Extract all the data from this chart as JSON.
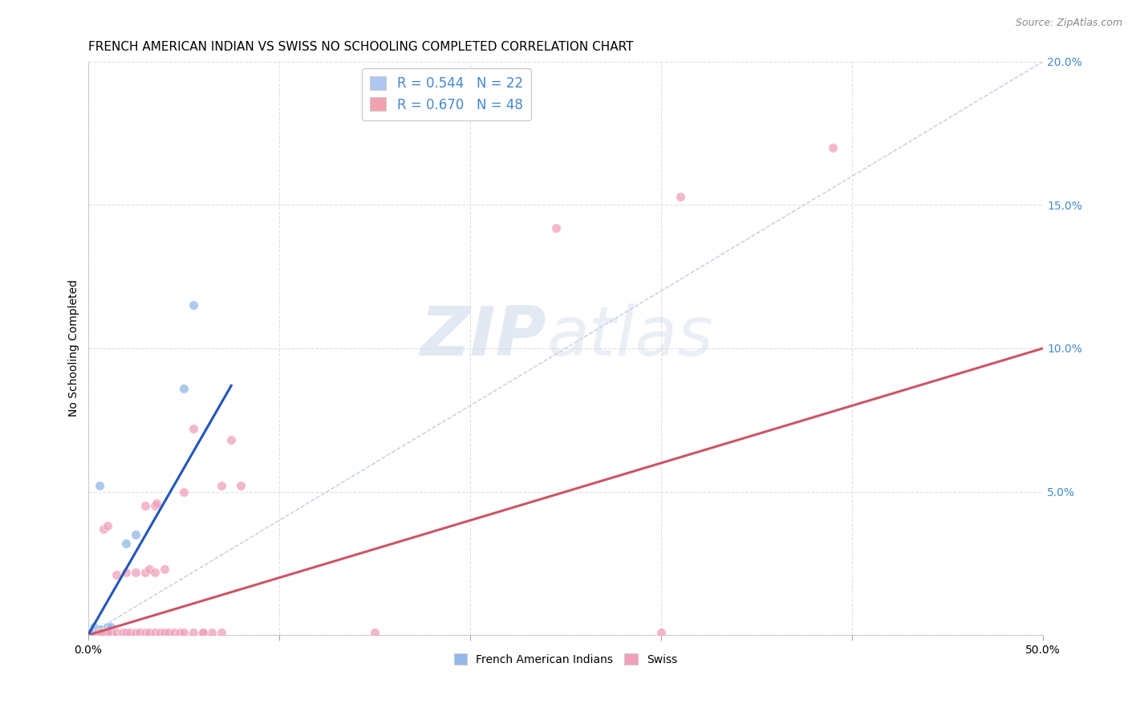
{
  "title": "FRENCH AMERICAN INDIAN VS SWISS NO SCHOOLING COMPLETED CORRELATION CHART",
  "source": "Source: ZipAtlas.com",
  "ylabel": "No Schooling Completed",
  "xlim": [
    0.0,
    0.5
  ],
  "ylim": [
    0.0,
    0.2
  ],
  "xticks": [
    0.0,
    0.1,
    0.2,
    0.3,
    0.4,
    0.5
  ],
  "yticks": [
    0.0,
    0.05,
    0.1,
    0.15,
    0.2
  ],
  "xticklabels": [
    "0.0%",
    "",
    "",
    "",
    "",
    "50.0%"
  ],
  "yticklabels": [
    "",
    "5.0%",
    "10.0%",
    "15.0%",
    "20.0%"
  ],
  "legend_entries": [
    {
      "label": "R = 0.544   N = 22",
      "color": "#aec6f0"
    },
    {
      "label": "R = 0.670   N = 48",
      "color": "#f5a0b0"
    }
  ],
  "blue_points": [
    [
      0.002,
      0.001
    ],
    [
      0.003,
      0.001
    ],
    [
      0.004,
      0.001
    ],
    [
      0.005,
      0.001
    ],
    [
      0.006,
      0.001
    ],
    [
      0.007,
      0.001
    ],
    [
      0.008,
      0.001
    ],
    [
      0.009,
      0.001
    ],
    [
      0.01,
      0.001
    ],
    [
      0.011,
      0.001
    ],
    [
      0.012,
      0.001
    ],
    [
      0.003,
      0.003
    ],
    [
      0.005,
      0.002
    ],
    [
      0.007,
      0.002
    ],
    [
      0.01,
      0.003
    ],
    [
      0.012,
      0.003
    ],
    [
      0.02,
      0.032
    ],
    [
      0.025,
      0.035
    ],
    [
      0.006,
      0.052
    ],
    [
      0.05,
      0.086
    ],
    [
      0.055,
      0.115
    ],
    [
      0.001,
      0.001
    ]
  ],
  "pink_points": [
    [
      0.005,
      0.001
    ],
    [
      0.008,
      0.001
    ],
    [
      0.01,
      0.001
    ],
    [
      0.012,
      0.001
    ],
    [
      0.015,
      0.001
    ],
    [
      0.018,
      0.001
    ],
    [
      0.02,
      0.001
    ],
    [
      0.022,
      0.001
    ],
    [
      0.025,
      0.001
    ],
    [
      0.027,
      0.001
    ],
    [
      0.03,
      0.001
    ],
    [
      0.032,
      0.001
    ],
    [
      0.035,
      0.001
    ],
    [
      0.038,
      0.001
    ],
    [
      0.04,
      0.001
    ],
    [
      0.042,
      0.001
    ],
    [
      0.045,
      0.001
    ],
    [
      0.048,
      0.001
    ],
    [
      0.05,
      0.001
    ],
    [
      0.055,
      0.001
    ],
    [
      0.06,
      0.001
    ],
    [
      0.065,
      0.001
    ],
    [
      0.07,
      0.001
    ],
    [
      0.015,
      0.021
    ],
    [
      0.02,
      0.022
    ],
    [
      0.025,
      0.022
    ],
    [
      0.03,
      0.022
    ],
    [
      0.032,
      0.023
    ],
    [
      0.035,
      0.022
    ],
    [
      0.04,
      0.023
    ],
    [
      0.008,
      0.037
    ],
    [
      0.01,
      0.038
    ],
    [
      0.03,
      0.045
    ],
    [
      0.035,
      0.045
    ],
    [
      0.036,
      0.046
    ],
    [
      0.05,
      0.05
    ],
    [
      0.07,
      0.052
    ],
    [
      0.08,
      0.052
    ],
    [
      0.055,
      0.072
    ],
    [
      0.075,
      0.068
    ],
    [
      0.15,
      0.001
    ],
    [
      0.3,
      0.001
    ],
    [
      0.245,
      0.142
    ],
    [
      0.31,
      0.153
    ],
    [
      0.39,
      0.17
    ],
    [
      0.01,
      0.001
    ],
    [
      0.007,
      0.001
    ],
    [
      0.06,
      0.001
    ]
  ],
  "blue_line": {
    "x": [
      0.0,
      0.075
    ],
    "y": [
      0.0,
      0.087
    ]
  },
  "pink_line": {
    "x": [
      0.0,
      0.5
    ],
    "y": [
      0.0,
      0.1
    ]
  },
  "diagonal_line": {
    "x": [
      0.0,
      0.5
    ],
    "y": [
      0.0,
      0.2
    ]
  },
  "watermark_zip": "ZIP",
  "watermark_atlas": "atlas",
  "background_color": "#ffffff",
  "grid_color": "#e0e0e0",
  "blue_scatter_color": "#90b8e8",
  "pink_scatter_color": "#f0a0b8",
  "blue_line_color": "#2255bb",
  "pink_line_color": "#cc5566",
  "diagonal_color": "#c0cce0",
  "title_fontsize": 11,
  "axis_label_fontsize": 10,
  "tick_fontsize": 10,
  "legend_fontsize": 12,
  "right_ytick_color": "#4488cc",
  "left_tick_color": "#888888",
  "marker_size": 70
}
